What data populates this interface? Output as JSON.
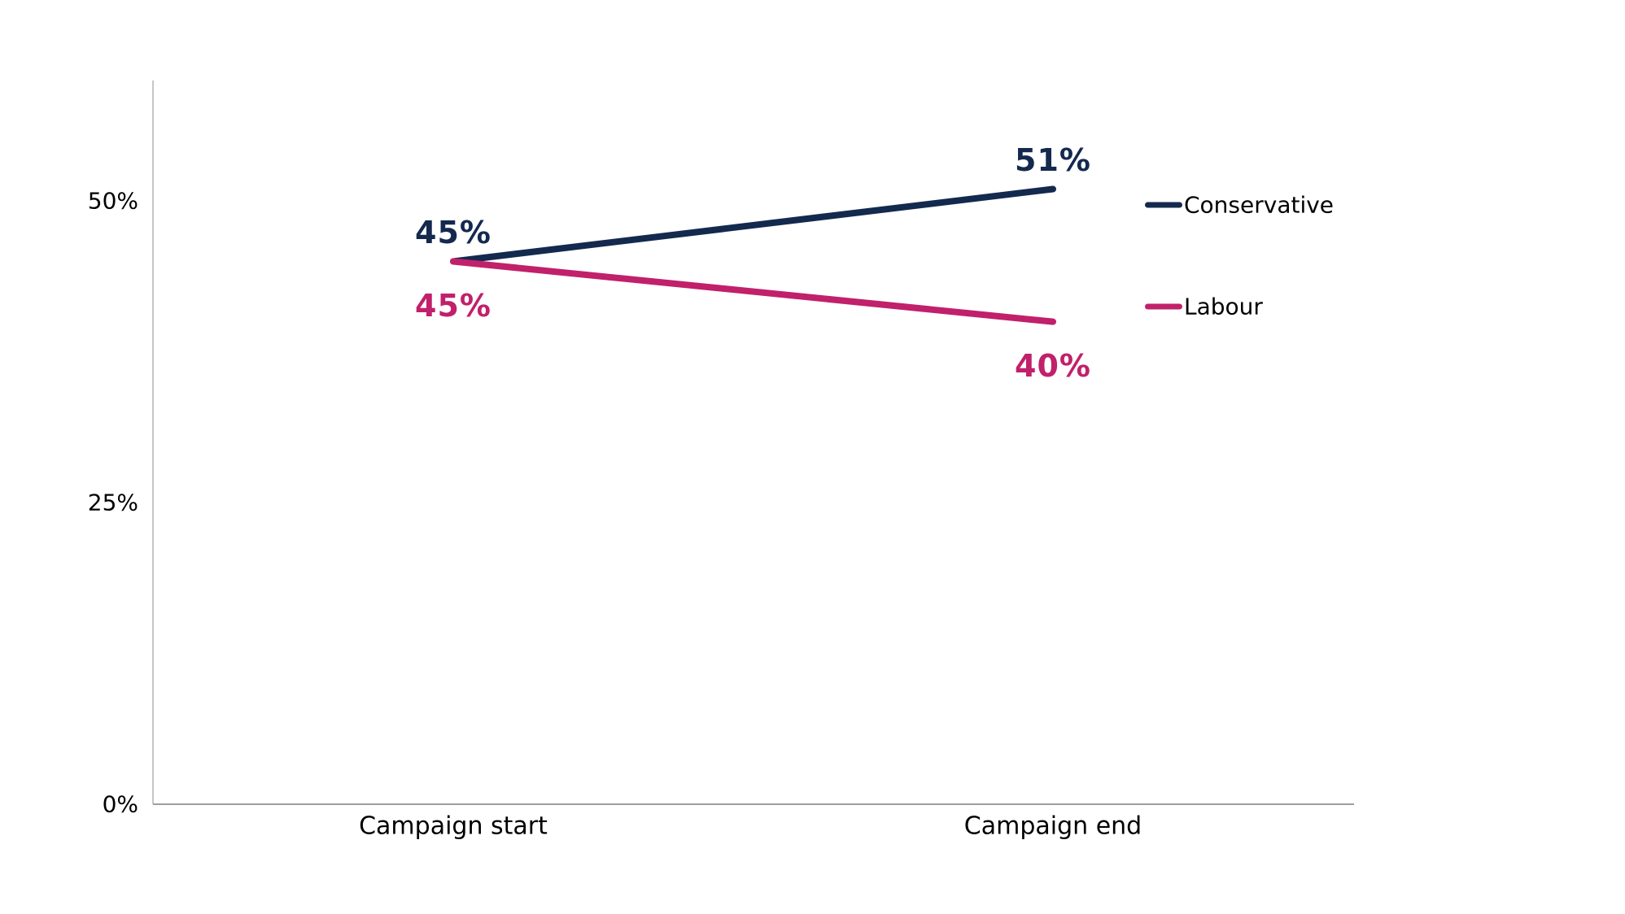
{
  "chart_data": {
    "type": "line",
    "title": "",
    "categories": [
      "Campaign start",
      "Campaign end"
    ],
    "series": [
      {
        "name": "Conservative",
        "color": "#14294E",
        "values": [
          45,
          51
        ],
        "labels": [
          "45%",
          "51%"
        ],
        "label_position": "above"
      },
      {
        "name": "Labour",
        "color": "#C1206B",
        "values": [
          45,
          40
        ],
        "labels": [
          "45%",
          "40%"
        ],
        "label_position": "below"
      }
    ],
    "yticks": [
      {
        "value": 0,
        "label": "0%"
      },
      {
        "value": 25,
        "label": "25%"
      },
      {
        "value": 50,
        "label": "50%"
      }
    ],
    "ylim": [
      0,
      60
    ],
    "xlabel": "",
    "ylabel": "",
    "grid": false,
    "legend_position": "right"
  },
  "colors": {
    "background": "#FFFFFF",
    "y_axis": "#C6C6C6",
    "x_axis": "#9E9E9E",
    "tick_text": "#000000",
    "legend_text": "#000000"
  }
}
